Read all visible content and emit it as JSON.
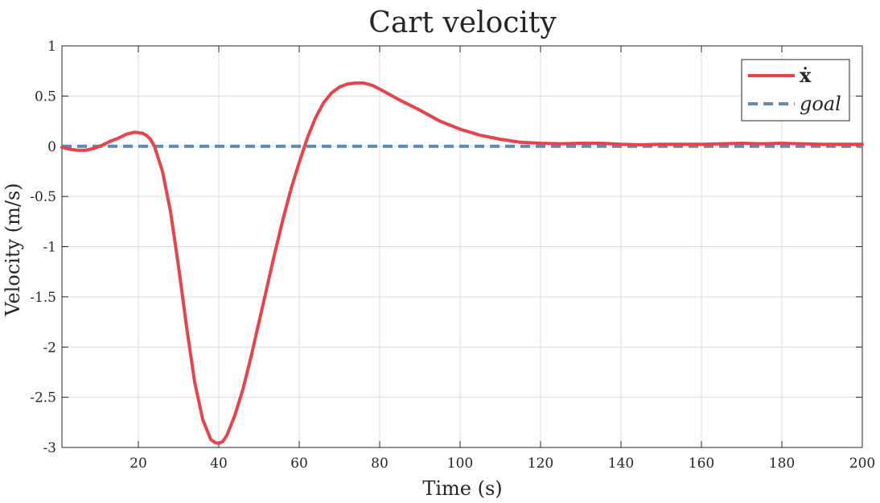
{
  "chart_data": {
    "type": "line",
    "title": "Cart velocity",
    "xlabel": "Time (s)",
    "ylabel": "Velocity (m/s)",
    "xlim": [
      1,
      200
    ],
    "ylim": [
      -3,
      1
    ],
    "xticks": [
      20,
      40,
      60,
      80,
      100,
      120,
      140,
      160,
      180,
      200
    ],
    "xtick_labels": [
      "20",
      "40",
      "60",
      "80",
      "100",
      "120",
      "140",
      "160",
      "180",
      "200"
    ],
    "yticks": [
      1,
      0.5,
      0,
      -0.5,
      -1,
      -1.5,
      -2,
      -2.5,
      -3
    ],
    "ytick_labels": [
      "1",
      "0.5",
      "0",
      "-0.5",
      "-1",
      "-1.5",
      "-2",
      "-2.5",
      "-3"
    ],
    "grid": true,
    "legend_position": "top-right",
    "series": [
      {
        "name": "ẋ",
        "color": "#e8434b",
        "style": "solid",
        "x": [
          1,
          3,
          5,
          7,
          9,
          11,
          13,
          15,
          17,
          19,
          21,
          22,
          23,
          24,
          26,
          28,
          30,
          32,
          34,
          36,
          38,
          39,
          40,
          41,
          42,
          44,
          46,
          48,
          50,
          52,
          54,
          56,
          58,
          60,
          62,
          64,
          66,
          68,
          70,
          72,
          74,
          76,
          78,
          80,
          85,
          90,
          95,
          100,
          105,
          110,
          115,
          120,
          125,
          130,
          135,
          140,
          145,
          150,
          155,
          160,
          165,
          170,
          175,
          180,
          185,
          190,
          195,
          200
        ],
        "y": [
          -0.01,
          -0.03,
          -0.04,
          -0.04,
          -0.02,
          0.01,
          0.05,
          0.08,
          0.12,
          0.14,
          0.13,
          0.11,
          0.07,
          0.0,
          -0.25,
          -0.65,
          -1.2,
          -1.8,
          -2.35,
          -2.72,
          -2.92,
          -2.95,
          -2.96,
          -2.94,
          -2.88,
          -2.68,
          -2.42,
          -2.1,
          -1.75,
          -1.4,
          -1.05,
          -0.72,
          -0.42,
          -0.16,
          0.08,
          0.28,
          0.43,
          0.53,
          0.59,
          0.62,
          0.63,
          0.63,
          0.61,
          0.57,
          0.46,
          0.36,
          0.25,
          0.17,
          0.11,
          0.07,
          0.04,
          0.03,
          0.025,
          0.03,
          0.03,
          0.02,
          0.015,
          0.02,
          0.02,
          0.02,
          0.025,
          0.03,
          0.025,
          0.03,
          0.025,
          0.02,
          0.02,
          0.02
        ]
      },
      {
        "name": "goal",
        "color": "#5a8bb8",
        "style": "dashed",
        "x": [
          1,
          200
        ],
        "y": [
          0,
          0
        ]
      }
    ]
  }
}
